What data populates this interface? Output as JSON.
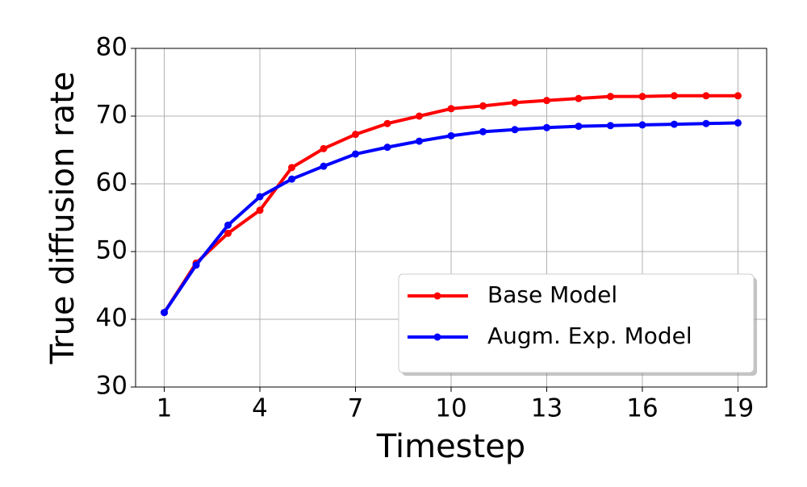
{
  "chart_data": {
    "type": "line",
    "xlabel": "Timestep",
    "ylabel": "True diffusion rate",
    "x": [
      1,
      2,
      3,
      4,
      5,
      6,
      7,
      8,
      9,
      10,
      11,
      12,
      13,
      14,
      15,
      16,
      17,
      18,
      19
    ],
    "series": [
      {
        "name": "Base Model",
        "color": "#ff0000",
        "values": [
          41,
          48.3,
          52.7,
          56.1,
          62.4,
          65.2,
          67.3,
          68.9,
          70.0,
          71.1,
          71.5,
          72.0,
          72.3,
          72.6,
          72.9,
          72.9,
          73.0,
          73.0,
          73.0
        ]
      },
      {
        "name": "Augm. Exp. Model",
        "color": "#0000ff",
        "values": [
          41,
          48.0,
          53.9,
          58.1,
          60.7,
          62.6,
          64.4,
          65.4,
          66.3,
          67.1,
          67.7,
          68.0,
          68.3,
          68.5,
          68.6,
          68.7,
          68.8,
          68.9,
          69.0
        ]
      }
    ],
    "xlim": [
      0.1,
      19.9
    ],
    "xticks": [
      1,
      4,
      7,
      10,
      13,
      16,
      19
    ],
    "ylim": [
      30,
      80
    ],
    "yticks": [
      30,
      40,
      50,
      60,
      70,
      80
    ],
    "grid": true,
    "legend": "lower right"
  }
}
